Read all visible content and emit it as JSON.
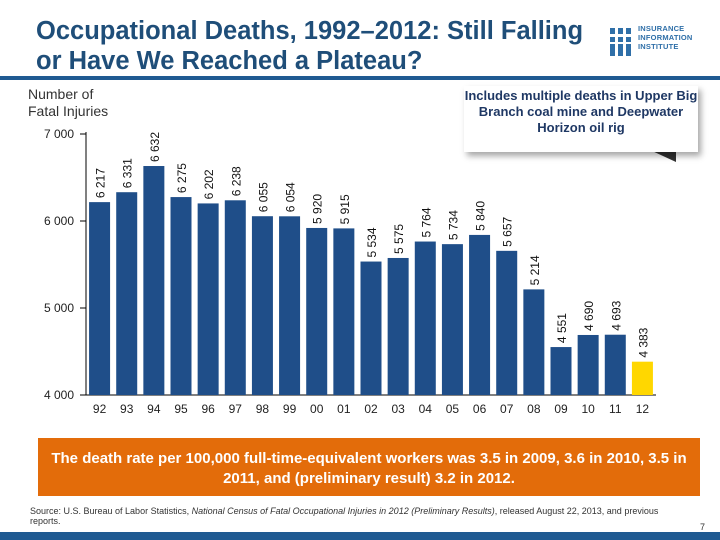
{
  "slide": {
    "title": "Occupational Deaths, 1992–2012: Still Falling or Have We Reached a Plateau?",
    "logo_text": "INSURANCE\nINFORMATION\nINSTITUTE",
    "y_axis_label": "Number of\nFatal Injuries",
    "callout": "Includes multiple deaths in Upper Big Branch coal mine and Deepwater Horizon oil rig",
    "banner": "The death rate per 100,000 full-time-equivalent workers was 3.5 in 2009, 3.6 in 2010, 3.5 in 2011, and (preliminary result) 3.2 in 2012.",
    "source_prefix": "Source: U.S. Bureau of Labor Statistics, ",
    "source_title": "National Census of Fatal Occupational Injuries in 2012 (Preliminary Results)",
    "source_suffix": ", released August 22, 2013, and previous reports.",
    "page_number": "7"
  },
  "colors": {
    "bar": "#1f4e89",
    "highlight_bar": "#ffd700",
    "title": "#1f4e79",
    "banner": "#e36c0a"
  },
  "chart_data": {
    "type": "bar",
    "categories": [
      "92",
      "93",
      "94",
      "95",
      "96",
      "97",
      "98",
      "99",
      "00",
      "01",
      "02",
      "03",
      "04",
      "05",
      "06",
      "07",
      "08",
      "09",
      "10",
      "11",
      "12"
    ],
    "values": [
      6217,
      6331,
      6632,
      6275,
      6202,
      6238,
      6055,
      6054,
      5920,
      5915,
      5534,
      5575,
      5764,
      5734,
      5840,
      5657,
      5214,
      4551,
      4690,
      4693,
      4383
    ],
    "labels": [
      "6 217",
      "6 331",
      "6 632",
      "6 275",
      "6 202",
      "6 238",
      "6 055",
      "6 054",
      "5 920",
      "5 915",
      "5 534",
      "5 575",
      "5 764",
      "5 734",
      "5 840",
      "5 657",
      "5 214",
      "4 551",
      "4 690",
      "4 693",
      "4 383"
    ],
    "highlight_index": 20,
    "ylim": [
      4000,
      7000
    ],
    "y_ticks": [
      4000,
      5000,
      6000,
      7000
    ],
    "y_tick_labels": [
      "4 000",
      "5 000",
      "6 000",
      "7 000"
    ],
    "ylabel": "Number of Fatal Injuries",
    "title": "Occupational Deaths, 1992–2012"
  }
}
